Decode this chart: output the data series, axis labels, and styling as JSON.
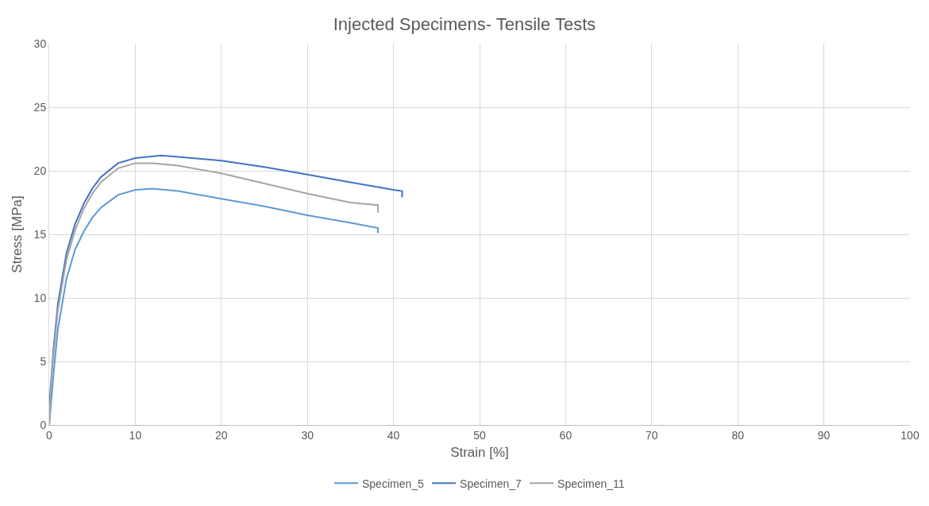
{
  "chart_data": {
    "type": "line",
    "title": "Injected Specimens- Tensile Tests",
    "xlabel": "Strain [%]",
    "ylabel": "Stress [MPa]",
    "xlim": [
      0,
      100
    ],
    "xticks": [
      0,
      10,
      20,
      30,
      40,
      50,
      60,
      70,
      80,
      90,
      100
    ],
    "ylim": [
      0,
      30
    ],
    "yticks": [
      0,
      5,
      10,
      15,
      20,
      25,
      30
    ],
    "grid": true,
    "legend": "bottom",
    "marker": "none",
    "line_style": "solid",
    "series": [
      {
        "name": "Specimen_5",
        "color": "#5b9bd5",
        "x": [
          0,
          0.5,
          1,
          2,
          3,
          4,
          5,
          6,
          8,
          10,
          12,
          15,
          20,
          25,
          30,
          35,
          38.2,
          38.2
        ],
        "values": [
          0,
          4,
          7.5,
          11.5,
          13.8,
          15.2,
          16.3,
          17.1,
          18.1,
          18.5,
          18.6,
          18.4,
          17.8,
          17.2,
          16.5,
          15.9,
          15.5,
          15.1
        ]
      },
      {
        "name": "Specimen_7",
        "color": "#4472c4",
        "x": [
          0,
          0.5,
          1,
          2,
          3,
          4,
          5,
          6,
          8,
          10,
          13,
          15,
          20,
          25,
          30,
          35,
          40,
          41,
          41
        ],
        "values": [
          1.5,
          6,
          9.5,
          13.5,
          15.8,
          17.4,
          18.6,
          19.5,
          20.6,
          21.0,
          21.2,
          21.1,
          20.8,
          20.3,
          19.7,
          19.1,
          18.5,
          18.4,
          17.9
        ]
      },
      {
        "name": "Specimen_11",
        "color": "#a5a5a5",
        "x": [
          0,
          0.3,
          0.5,
          1,
          2,
          3,
          4,
          5,
          6,
          8,
          10,
          12,
          15,
          20,
          25,
          30,
          35,
          38.2,
          38.2
        ],
        "values": [
          0,
          4,
          5.5,
          9,
          13,
          15.3,
          17,
          18.2,
          19.1,
          20.2,
          20.6,
          20.6,
          20.4,
          19.8,
          19.0,
          18.2,
          17.5,
          17.3,
          16.7
        ]
      }
    ]
  }
}
